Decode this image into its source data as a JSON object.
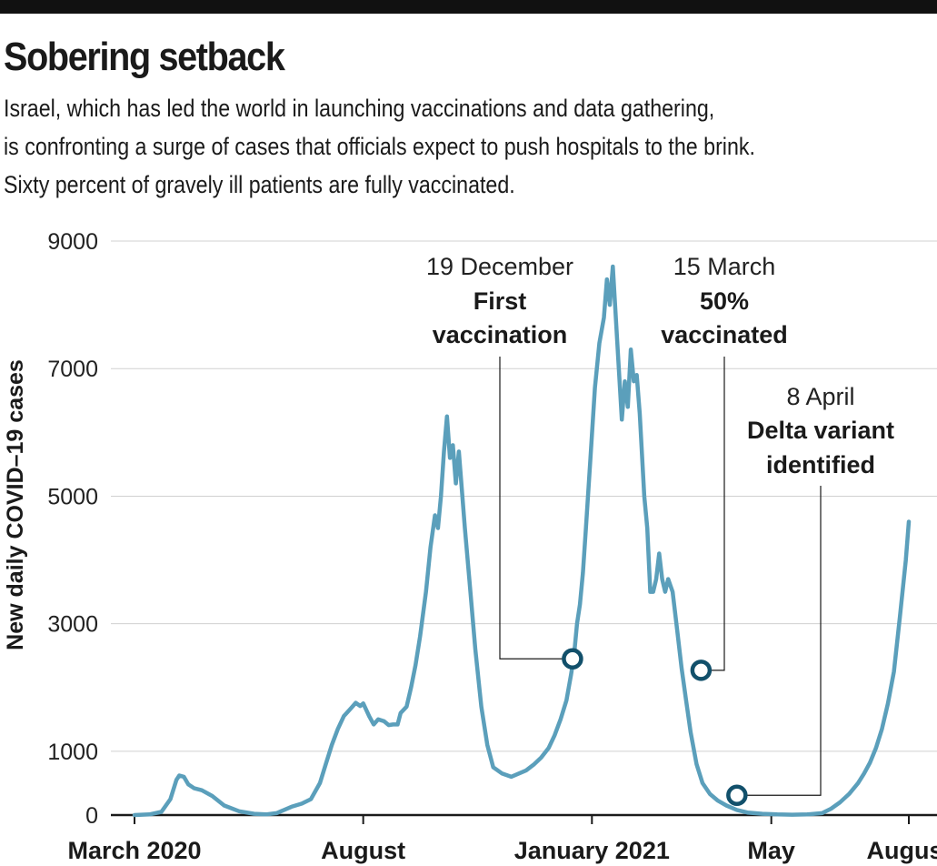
{
  "header": {
    "title": "Sobering setback",
    "subtitle_lines": [
      "Israel, which has led the world in launching vaccinations and data gathering,",
      "is confronting a surge of cases that officials expect to push hospitals to the brink.",
      "Sixty percent of gravely ill patients are fully vaccinated."
    ]
  },
  "chart_data": {
    "type": "line",
    "title": "Sobering setback",
    "ylabel": "New daily COVID–19 cases",
    "xlabel": "",
    "ylim": [
      0,
      9000
    ],
    "yticks": [
      0,
      1000,
      3000,
      5000,
      7000,
      9000
    ],
    "xlim": [
      0,
      530
    ],
    "xticks": [
      {
        "day": 0,
        "label": "March 2020"
      },
      {
        "day": 153,
        "label": "August"
      },
      {
        "day": 306,
        "label": "January 2021"
      },
      {
        "day": 426,
        "label": "May"
      },
      {
        "day": 518,
        "label": "August"
      }
    ],
    "series": [
      {
        "name": "New daily COVID-19 cases",
        "color": "#5b9fbb",
        "points": [
          [
            0,
            0
          ],
          [
            10,
            10
          ],
          [
            18,
            50
          ],
          [
            24,
            250
          ],
          [
            28,
            550
          ],
          [
            30,
            620
          ],
          [
            33,
            600
          ],
          [
            36,
            480
          ],
          [
            40,
            420
          ],
          [
            45,
            390
          ],
          [
            52,
            300
          ],
          [
            60,
            150
          ],
          [
            70,
            60
          ],
          [
            80,
            20
          ],
          [
            88,
            10
          ],
          [
            95,
            30
          ],
          [
            100,
            80
          ],
          [
            105,
            130
          ],
          [
            112,
            180
          ],
          [
            118,
            250
          ],
          [
            124,
            500
          ],
          [
            128,
            800
          ],
          [
            132,
            1100
          ],
          [
            136,
            1350
          ],
          [
            140,
            1550
          ],
          [
            145,
            1680
          ],
          [
            148,
            1760
          ],
          [
            151,
            1710
          ],
          [
            153,
            1750
          ],
          [
            157,
            1550
          ],
          [
            160,
            1420
          ],
          [
            163,
            1500
          ],
          [
            167,
            1470
          ],
          [
            170,
            1410
          ],
          [
            173,
            1420
          ],
          [
            176,
            1420
          ],
          [
            178,
            1600
          ],
          [
            182,
            1700
          ],
          [
            185,
            2000
          ],
          [
            188,
            2350
          ],
          [
            191,
            2800
          ],
          [
            195,
            3500
          ],
          [
            198,
            4200
          ],
          [
            201,
            4700
          ],
          [
            203,
            4500
          ],
          [
            205,
            5000
          ],
          [
            207,
            5700
          ],
          [
            209,
            6250
          ],
          [
            211,
            5600
          ],
          [
            213,
            5800
          ],
          [
            215,
            5200
          ],
          [
            217,
            5700
          ],
          [
            219,
            5100
          ],
          [
            221,
            4500
          ],
          [
            224,
            3700
          ],
          [
            228,
            2600
          ],
          [
            232,
            1700
          ],
          [
            236,
            1100
          ],
          [
            240,
            750
          ],
          [
            246,
            650
          ],
          [
            252,
            600
          ],
          [
            257,
            650
          ],
          [
            262,
            700
          ],
          [
            267,
            790
          ],
          [
            272,
            900
          ],
          [
            277,
            1050
          ],
          [
            281,
            1250
          ],
          [
            285,
            1500
          ],
          [
            289,
            1800
          ],
          [
            292,
            2200
          ],
          [
            294,
            2500
          ],
          [
            296,
            3000
          ],
          [
            298,
            3300
          ],
          [
            300,
            3800
          ],
          [
            302,
            4500
          ],
          [
            305,
            5600
          ],
          [
            308,
            6700
          ],
          [
            311,
            7400
          ],
          [
            314,
            7800
          ],
          [
            316,
            8400
          ],
          [
            318,
            8000
          ],
          [
            320,
            8600
          ],
          [
            322,
            7800
          ],
          [
            324,
            7000
          ],
          [
            326,
            6200
          ],
          [
            328,
            6800
          ],
          [
            330,
            6400
          ],
          [
            332,
            7300
          ],
          [
            334,
            6800
          ],
          [
            336,
            6900
          ],
          [
            338,
            6300
          ],
          [
            341,
            5000
          ],
          [
            343,
            4500
          ],
          [
            345,
            3500
          ],
          [
            347,
            3500
          ],
          [
            349,
            3700
          ],
          [
            351,
            4100
          ],
          [
            353,
            3700
          ],
          [
            355,
            3500
          ],
          [
            357,
            3700
          ],
          [
            360,
            3500
          ],
          [
            363,
            2900
          ],
          [
            366,
            2300
          ],
          [
            369,
            1800
          ],
          [
            372,
            1300
          ],
          [
            376,
            800
          ],
          [
            380,
            500
          ],
          [
            385,
            330
          ],
          [
            390,
            230
          ],
          [
            396,
            150
          ],
          [
            403,
            80
          ],
          [
            410,
            40
          ],
          [
            420,
            20
          ],
          [
            430,
            10
          ],
          [
            440,
            5
          ],
          [
            450,
            10
          ],
          [
            460,
            30
          ],
          [
            466,
            100
          ],
          [
            472,
            200
          ],
          [
            478,
            330
          ],
          [
            484,
            500
          ],
          [
            488,
            650
          ],
          [
            492,
            820
          ],
          [
            496,
            1050
          ],
          [
            500,
            1350
          ],
          [
            504,
            1750
          ],
          [
            508,
            2250
          ],
          [
            512,
            3100
          ],
          [
            516,
            4000
          ],
          [
            518,
            4600
          ]
        ]
      }
    ],
    "annotations": [
      {
        "date": "19 December",
        "label_lines": [
          "First",
          "vaccination"
        ],
        "day": 293,
        "value": 2450
      },
      {
        "date": "15 March",
        "label_lines": [
          "50%",
          "vaccinated"
        ],
        "day": 379,
        "value": 2270
      },
      {
        "date": "8 April",
        "label_lines": [
          "Delta variant",
          "identified"
        ],
        "day": 403,
        "value": 310
      }
    ]
  }
}
